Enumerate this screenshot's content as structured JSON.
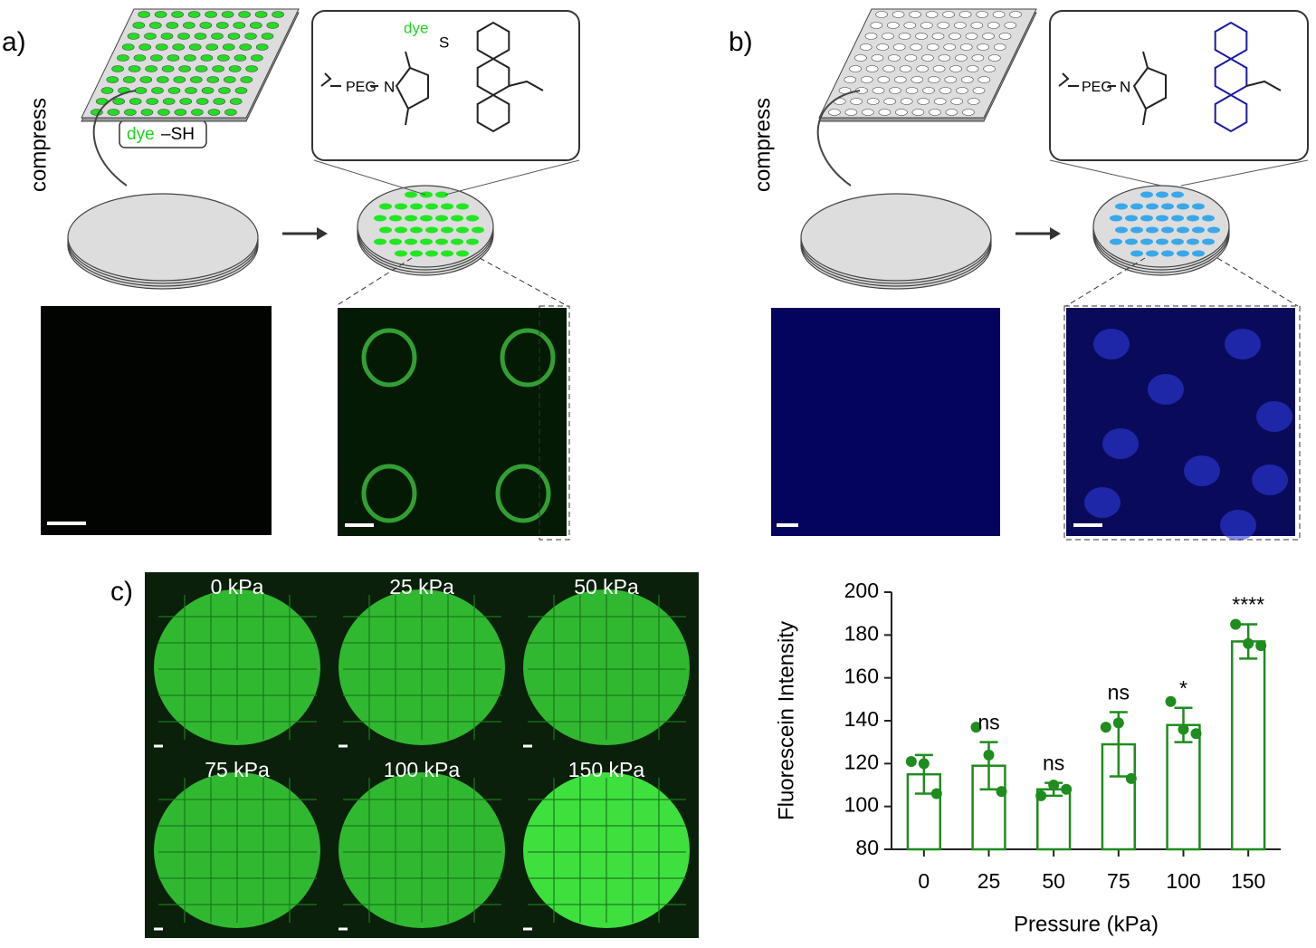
{
  "figure": {
    "panel_labels": [
      "a)",
      "b)",
      "c)"
    ],
    "compress": "compress",
    "dye": "dye",
    "sh": "–SH",
    "thiol": "S",
    "peg": "PEG",
    "n": "N",
    "image_labels": [
      "0 kPa",
      "25 kPa",
      "50 kPa",
      "75 kPa",
      "100 kPa",
      "150 kPa"
    ]
  },
  "chart_data": {
    "type": "bar",
    "x_label": "Pressure (kPa)",
    "y_label": "Fluorescein Intensity",
    "categories": [
      "0",
      "25",
      "50",
      "75",
      "100",
      "150"
    ],
    "values": [
      115,
      119,
      108,
      129,
      138,
      177
    ],
    "errors": [
      9,
      11,
      3,
      15,
      8,
      8
    ],
    "points": [
      [
        121,
        120,
        106
      ],
      [
        137,
        124,
        107
      ],
      [
        105,
        110,
        108
      ],
      [
        137,
        139,
        113
      ],
      [
        149,
        136,
        134
      ],
      [
        185,
        176,
        175
      ]
    ],
    "significance": [
      null,
      "ns",
      "ns",
      "ns",
      "*",
      "****"
    ],
    "color": "#1e8c1e",
    "ylim": [
      80,
      200
    ],
    "yticks": [
      80,
      100,
      120,
      140,
      160,
      180,
      200
    ]
  }
}
